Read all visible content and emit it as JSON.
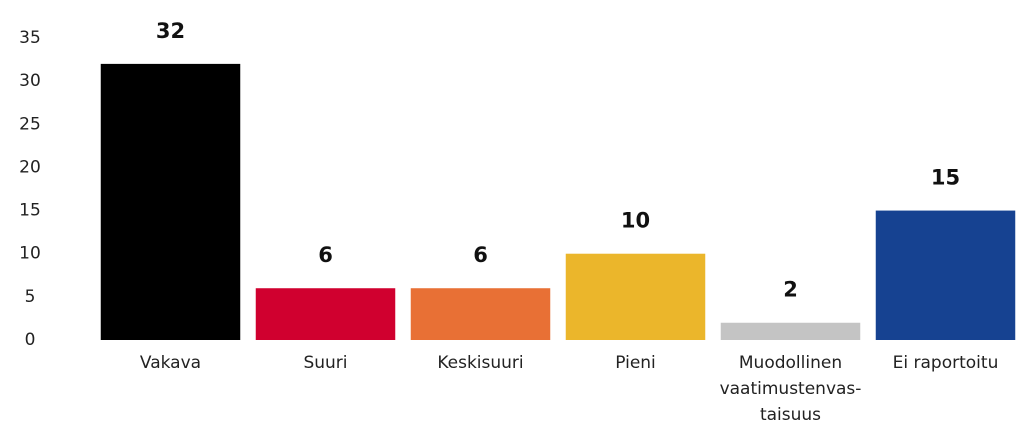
{
  "chart_data": {
    "type": "bar",
    "categories": [
      "Vakava",
      "Suuri",
      "Keskisuuri",
      "Pieni",
      "Muodollinen\nvaatimustenvas-\ntaisuus",
      "Ei raportoitu"
    ],
    "values": [
      32,
      6,
      6,
      10,
      2,
      15
    ],
    "colors": [
      "#000000",
      "#d0002f",
      "#e87035",
      "#ebb62b",
      "#c4c4c4",
      "#164291"
    ],
    "ylim": [
      0,
      35
    ],
    "yticks": [
      0,
      5,
      10,
      15,
      20,
      25,
      30,
      35
    ],
    "grid": false
  }
}
